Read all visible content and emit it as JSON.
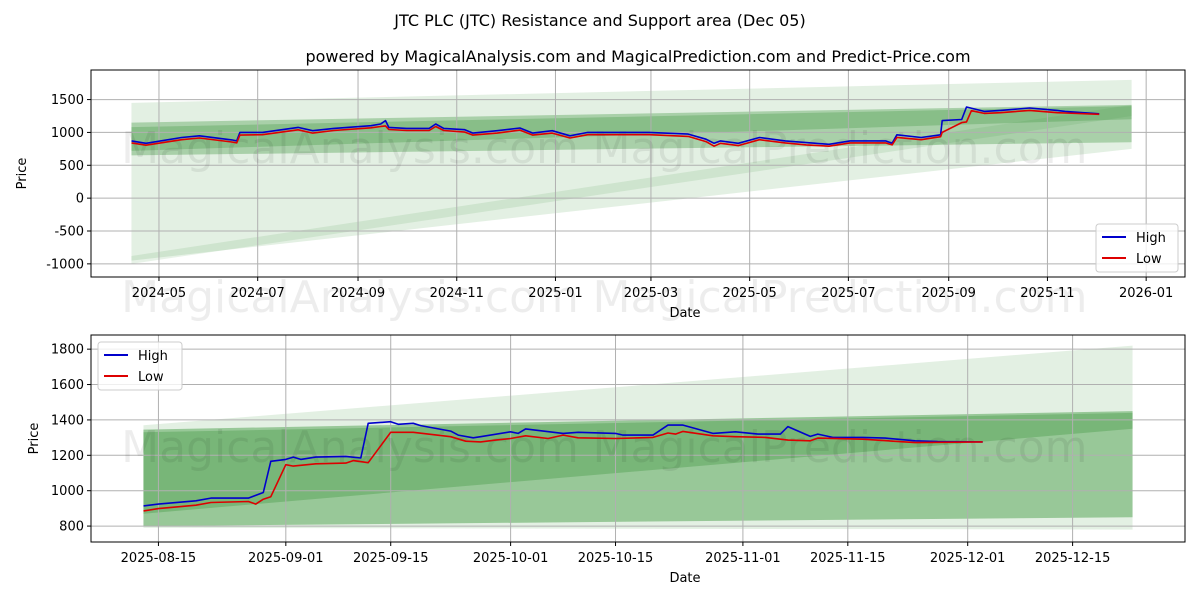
{
  "title": "JTC PLC (JTC) Resistance and Support area (Dec 05)",
  "subtitle": "powered by MagicalAnalysis.com and MagicalPrediction.com and Predict-Price.com",
  "watermarks": [
    "MagicalAnalysis.com",
    "MagicalPrediction.com"
  ],
  "colors": {
    "high": "#0000cc",
    "low": "#dd0000",
    "band": "#3c963c"
  },
  "chart_data": [
    {
      "type": "line",
      "xlabel": "Date",
      "ylabel": "Price",
      "ylim": [
        -1200,
        1950
      ],
      "xlim": [
        "2024-03-20",
        "2026-01-25"
      ],
      "grid": true,
      "legend": {
        "placement": "lower-right",
        "entries": [
          "High",
          "Low"
        ]
      },
      "yticks": [
        -1000,
        -500,
        0,
        500,
        1000,
        1500
      ],
      "xticks": [
        "2024-05",
        "2024-07",
        "2024-09",
        "2024-11",
        "2025-01",
        "2025-03",
        "2025-05",
        "2025-07",
        "2025-09",
        "2025-11",
        "2026-01"
      ],
      "bands": [
        {
          "start": "2024-04-14",
          "end": "2025-12-23",
          "start_range": [
            -950,
            1450
          ],
          "end_range": [
            750,
            1800
          ],
          "opacity": 0.14
        },
        {
          "start": "2024-04-14",
          "end": "2025-12-23",
          "start_range": [
            -1000,
            -880
          ],
          "end_range": [
            1250,
            1420
          ],
          "opacity": 0.12
        },
        {
          "start": "2024-04-14",
          "end": "2025-12-23",
          "start_range": [
            650,
            1150
          ],
          "end_range": [
            850,
            1420
          ],
          "opacity": 0.35
        },
        {
          "start": "2024-04-14",
          "end": "2025-12-23",
          "start_range": [
            720,
            1080
          ],
          "end_range": [
            1200,
            1400
          ],
          "opacity": 0.3
        }
      ],
      "series": [
        {
          "name": "High",
          "points": [
            [
              "2024-04-14",
              871
            ],
            [
              "2024-04-23",
              835
            ],
            [
              "2024-05-15",
              923
            ],
            [
              "2024-05-26",
              948
            ],
            [
              "2024-06-15",
              887
            ],
            [
              "2024-06-18",
              871
            ],
            [
              "2024-06-20",
              1000
            ],
            [
              "2024-07-04",
              1000
            ],
            [
              "2024-07-26",
              1077
            ],
            [
              "2024-08-04",
              1026
            ],
            [
              "2024-08-17",
              1062
            ],
            [
              "2024-09-09",
              1103
            ],
            [
              "2024-09-15",
              1129
            ],
            [
              "2024-09-18",
              1180
            ],
            [
              "2024-09-20",
              1077
            ],
            [
              "2024-10-01",
              1062
            ],
            [
              "2024-10-15",
              1062
            ],
            [
              "2024-10-19",
              1129
            ],
            [
              "2024-10-24",
              1062
            ],
            [
              "2024-11-06",
              1041
            ],
            [
              "2024-11-11",
              990
            ],
            [
              "2024-11-26",
              1026
            ],
            [
              "2024-12-10",
              1067
            ],
            [
              "2024-12-18",
              990
            ],
            [
              "2024-12-30",
              1026
            ],
            [
              "2025-01-10",
              948
            ],
            [
              "2025-01-21",
              1000
            ],
            [
              "2025-02-28",
              1000
            ],
            [
              "2025-03-24",
              974
            ],
            [
              "2025-04-04",
              897
            ],
            [
              "2025-04-09",
              835
            ],
            [
              "2025-04-13",
              871
            ],
            [
              "2025-04-24",
              835
            ],
            [
              "2025-05-07",
              923
            ],
            [
              "2025-05-23",
              871
            ],
            [
              "2025-06-05",
              845
            ],
            [
              "2025-06-19",
              820
            ],
            [
              "2025-07-02",
              871
            ],
            [
              "2025-07-24",
              871
            ],
            [
              "2025-07-28",
              835
            ],
            [
              "2025-07-31",
              964
            ],
            [
              "2025-08-15",
              923
            ],
            [
              "2025-08-27",
              964
            ],
            [
              "2025-08-28",
              1180
            ],
            [
              "2025-09-09",
              1196
            ],
            [
              "2025-09-12",
              1387
            ],
            [
              "2025-09-23",
              1320
            ],
            [
              "2025-10-03",
              1335
            ],
            [
              "2025-10-21",
              1371
            ],
            [
              "2025-11-07",
              1335
            ],
            [
              "2025-11-12",
              1320
            ],
            [
              "2025-12-03",
              1284
            ]
          ]
        },
        {
          "name": "Low",
          "points": [
            [
              "2024-04-14",
              840
            ],
            [
              "2024-04-23",
              805
            ],
            [
              "2024-05-15",
              890
            ],
            [
              "2024-05-26",
              915
            ],
            [
              "2024-06-15",
              855
            ],
            [
              "2024-06-18",
              840
            ],
            [
              "2024-06-20",
              960
            ],
            [
              "2024-07-04",
              965
            ],
            [
              "2024-07-26",
              1040
            ],
            [
              "2024-08-04",
              990
            ],
            [
              "2024-08-17",
              1030
            ],
            [
              "2024-09-09",
              1070
            ],
            [
              "2024-09-15",
              1090
            ],
            [
              "2024-09-18",
              1100
            ],
            [
              "2024-09-20",
              1045
            ],
            [
              "2024-10-01",
              1030
            ],
            [
              "2024-10-15",
              1030
            ],
            [
              "2024-10-19",
              1090
            ],
            [
              "2024-10-24",
              1030
            ],
            [
              "2024-11-06",
              1005
            ],
            [
              "2024-11-11",
              960
            ],
            [
              "2024-11-26",
              990
            ],
            [
              "2024-12-10",
              1035
            ],
            [
              "2024-12-18",
              960
            ],
            [
              "2024-12-30",
              990
            ],
            [
              "2025-01-10",
              915
            ],
            [
              "2025-01-21",
              965
            ],
            [
              "2025-02-28",
              965
            ],
            [
              "2025-03-24",
              940
            ],
            [
              "2025-04-04",
              860
            ],
            [
              "2025-04-09",
              790
            ],
            [
              "2025-04-13",
              835
            ],
            [
              "2025-04-24",
              800
            ],
            [
              "2025-05-07",
              890
            ],
            [
              "2025-05-23",
              840
            ],
            [
              "2025-06-05",
              810
            ],
            [
              "2025-06-19",
              790
            ],
            [
              "2025-07-02",
              840
            ],
            [
              "2025-07-24",
              840
            ],
            [
              "2025-07-28",
              810
            ],
            [
              "2025-07-31",
              925
            ],
            [
              "2025-08-15",
              890
            ],
            [
              "2025-08-27",
              935
            ],
            [
              "2025-08-28",
              1000
            ],
            [
              "2025-09-09",
              1150
            ],
            [
              "2025-09-12",
              1160
            ],
            [
              "2025-09-15",
              1330
            ],
            [
              "2025-09-23",
              1290
            ],
            [
              "2025-10-03",
              1300
            ],
            [
              "2025-10-21",
              1335
            ],
            [
              "2025-11-07",
              1300
            ],
            [
              "2025-11-12",
              1295
            ],
            [
              "2025-12-03",
              1276
            ]
          ]
        }
      ]
    },
    {
      "type": "line",
      "xlabel": "Date",
      "ylabel": "Price",
      "ylim": [
        710,
        1880
      ],
      "xlim": [
        "2025-08-06",
        "2025-12-30"
      ],
      "grid": true,
      "legend": {
        "placement": "upper-left",
        "entries": [
          "High",
          "Low"
        ]
      },
      "yticks": [
        800,
        1000,
        1200,
        1400,
        1600,
        1800
      ],
      "xticks": [
        "2025-08-15",
        "2025-09-01",
        "2025-09-15",
        "2025-10-01",
        "2025-10-15",
        "2025-11-01",
        "2025-11-15",
        "2025-12-01",
        "2025-12-15"
      ],
      "bands": [
        {
          "start": "2025-08-13",
          "end": "2025-12-23",
          "start_range": [
            790,
            1370
          ],
          "end_range": [
            780,
            1820
          ],
          "opacity": 0.14
        },
        {
          "start": "2025-08-13",
          "end": "2025-12-23",
          "start_range": [
            800,
            1345
          ],
          "end_range": [
            850,
            1450
          ],
          "opacity": 0.45
        },
        {
          "start": "2025-08-13",
          "end": "2025-12-23",
          "start_range": [
            870,
            1330
          ],
          "end_range": [
            1350,
            1440
          ],
          "opacity": 0.35
        }
      ],
      "series": [
        {
          "name": "High",
          "points": [
            [
              "2025-08-13",
              914
            ],
            [
              "2025-08-15",
              924
            ],
            [
              "2025-08-20",
              943
            ],
            [
              "2025-08-22",
              958
            ],
            [
              "2025-08-27",
              958
            ],
            [
              "2025-08-29",
              990
            ],
            [
              "2025-08-30",
              1166
            ],
            [
              "2025-09-01",
              1177
            ],
            [
              "2025-09-02",
              1190
            ],
            [
              "2025-09-03",
              1177
            ],
            [
              "2025-09-05",
              1190
            ],
            [
              "2025-09-09",
              1194
            ],
            [
              "2025-09-11",
              1185
            ],
            [
              "2025-09-12",
              1381
            ],
            [
              "2025-09-15",
              1390
            ],
            [
              "2025-09-16",
              1375
            ],
            [
              "2025-09-18",
              1381
            ],
            [
              "2025-09-19",
              1368
            ],
            [
              "2025-09-23",
              1337
            ],
            [
              "2025-09-24",
              1314
            ],
            [
              "2025-09-26",
              1299
            ],
            [
              "2025-09-27",
              1305
            ],
            [
              "2025-10-01",
              1333
            ],
            [
              "2025-10-02",
              1324
            ],
            [
              "2025-10-03",
              1349
            ],
            [
              "2025-10-08",
              1324
            ],
            [
              "2025-10-10",
              1330
            ],
            [
              "2025-10-15",
              1324
            ],
            [
              "2025-10-16",
              1314
            ],
            [
              "2025-10-20",
              1314
            ],
            [
              "2025-10-22",
              1371
            ],
            [
              "2025-10-24",
              1371
            ],
            [
              "2025-10-28",
              1324
            ],
            [
              "2025-10-31",
              1333
            ],
            [
              "2025-11-03",
              1320
            ],
            [
              "2025-11-06",
              1320
            ],
            [
              "2025-11-07",
              1362
            ],
            [
              "2025-11-10",
              1307
            ],
            [
              "2025-11-11",
              1320
            ],
            [
              "2025-11-13",
              1301
            ],
            [
              "2025-11-17",
              1301
            ],
            [
              "2025-11-20",
              1297
            ],
            [
              "2025-11-24",
              1282
            ],
            [
              "2025-11-27",
              1278
            ],
            [
              "2025-12-03",
              1276
            ]
          ]
        },
        {
          "name": "Low",
          "points": [
            [
              "2025-08-13",
              886
            ],
            [
              "2025-08-15",
              899
            ],
            [
              "2025-08-20",
              918
            ],
            [
              "2025-08-22",
              933
            ],
            [
              "2025-08-27",
              939
            ],
            [
              "2025-08-28",
              924
            ],
            [
              "2025-08-29",
              952
            ],
            [
              "2025-08-30",
              966
            ],
            [
              "2025-09-01",
              1147
            ],
            [
              "2025-09-02",
              1139
            ],
            [
              "2025-09-05",
              1152
            ],
            [
              "2025-09-09",
              1156
            ],
            [
              "2025-09-10",
              1170
            ],
            [
              "2025-09-12",
              1158
            ],
            [
              "2025-09-15",
              1330
            ],
            [
              "2025-09-18",
              1330
            ],
            [
              "2025-09-23",
              1305
            ],
            [
              "2025-09-25",
              1280
            ],
            [
              "2025-09-27",
              1276
            ],
            [
              "2025-09-29",
              1286
            ],
            [
              "2025-10-01",
              1295
            ],
            [
              "2025-10-03",
              1310
            ],
            [
              "2025-10-06",
              1295
            ],
            [
              "2025-10-08",
              1314
            ],
            [
              "2025-10-10",
              1299
            ],
            [
              "2025-10-15",
              1295
            ],
            [
              "2025-10-20",
              1301
            ],
            [
              "2025-10-22",
              1326
            ],
            [
              "2025-10-23",
              1320
            ],
            [
              "2025-10-24",
              1335
            ],
            [
              "2025-10-28",
              1310
            ],
            [
              "2025-10-31",
              1305
            ],
            [
              "2025-11-04",
              1301
            ],
            [
              "2025-11-07",
              1286
            ],
            [
              "2025-11-10",
              1282
            ],
            [
              "2025-11-11",
              1297
            ],
            [
              "2025-11-17",
              1291
            ],
            [
              "2025-11-24",
              1272
            ],
            [
              "2025-12-03",
              1276
            ]
          ]
        }
      ]
    }
  ]
}
